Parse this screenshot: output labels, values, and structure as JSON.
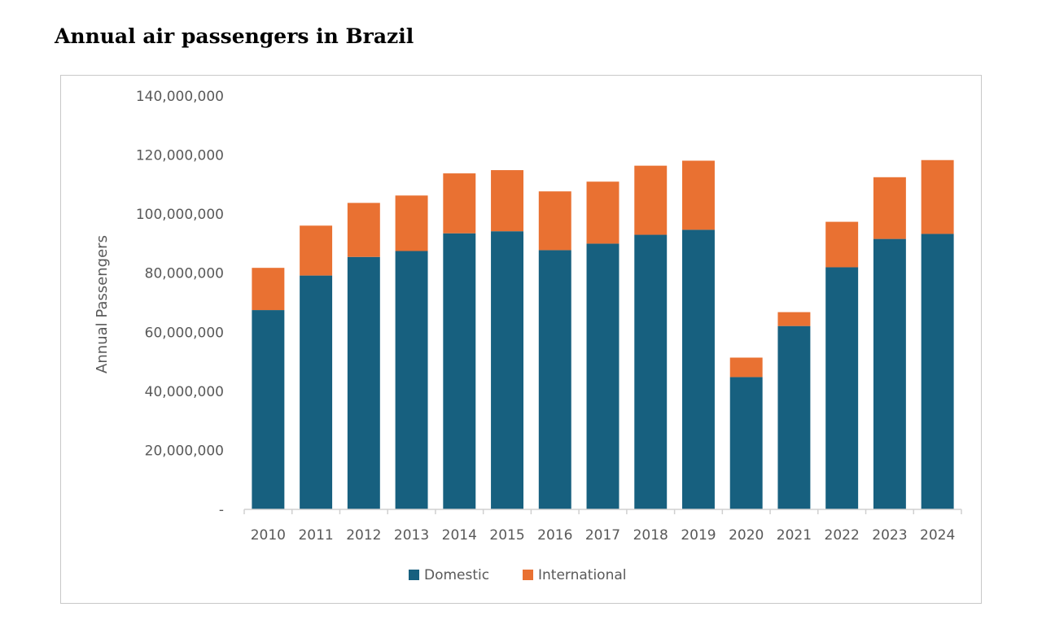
{
  "page": {
    "title": "Annual air passengers in Brazil"
  },
  "colors": {
    "domestic": "#17607f",
    "international": "#e97132",
    "axis": "#d0d0d0",
    "text": "#595959"
  },
  "chart_data": {
    "type": "bar",
    "stacked": true,
    "title": "Annual air passengers in Brazil",
    "xlabel": "",
    "ylabel": "Annual Passengers",
    "ylim": [
      0,
      140000000
    ],
    "yticks": [
      0,
      20000000,
      40000000,
      60000000,
      80000000,
      100000000,
      120000000,
      140000000
    ],
    "ytick_labels": [
      "-",
      "20,000,000",
      "40,000,000",
      "60,000,000",
      "80,000,000",
      "100,000,000",
      "120,000,000",
      "140,000,000"
    ],
    "grid": false,
    "legend_position": "bottom",
    "categories": [
      "2010",
      "2011",
      "2012",
      "2013",
      "2014",
      "2015",
      "2016",
      "2017",
      "2018",
      "2019",
      "2020",
      "2021",
      "2022",
      "2023",
      "2024"
    ],
    "series": [
      {
        "name": "Domestic",
        "values": [
          67500000,
          79200000,
          85500000,
          87500000,
          93500000,
          94200000,
          87800000,
          90000000,
          93000000,
          94700000,
          44800000,
          62100000,
          82000000,
          91600000,
          93300000
        ]
      },
      {
        "name": "International",
        "values": [
          14300000,
          16900000,
          18300000,
          18800000,
          20300000,
          20700000,
          19900000,
          21000000,
          23400000,
          23400000,
          6600000,
          4700000,
          15400000,
          20900000,
          25000000
        ]
      }
    ]
  }
}
